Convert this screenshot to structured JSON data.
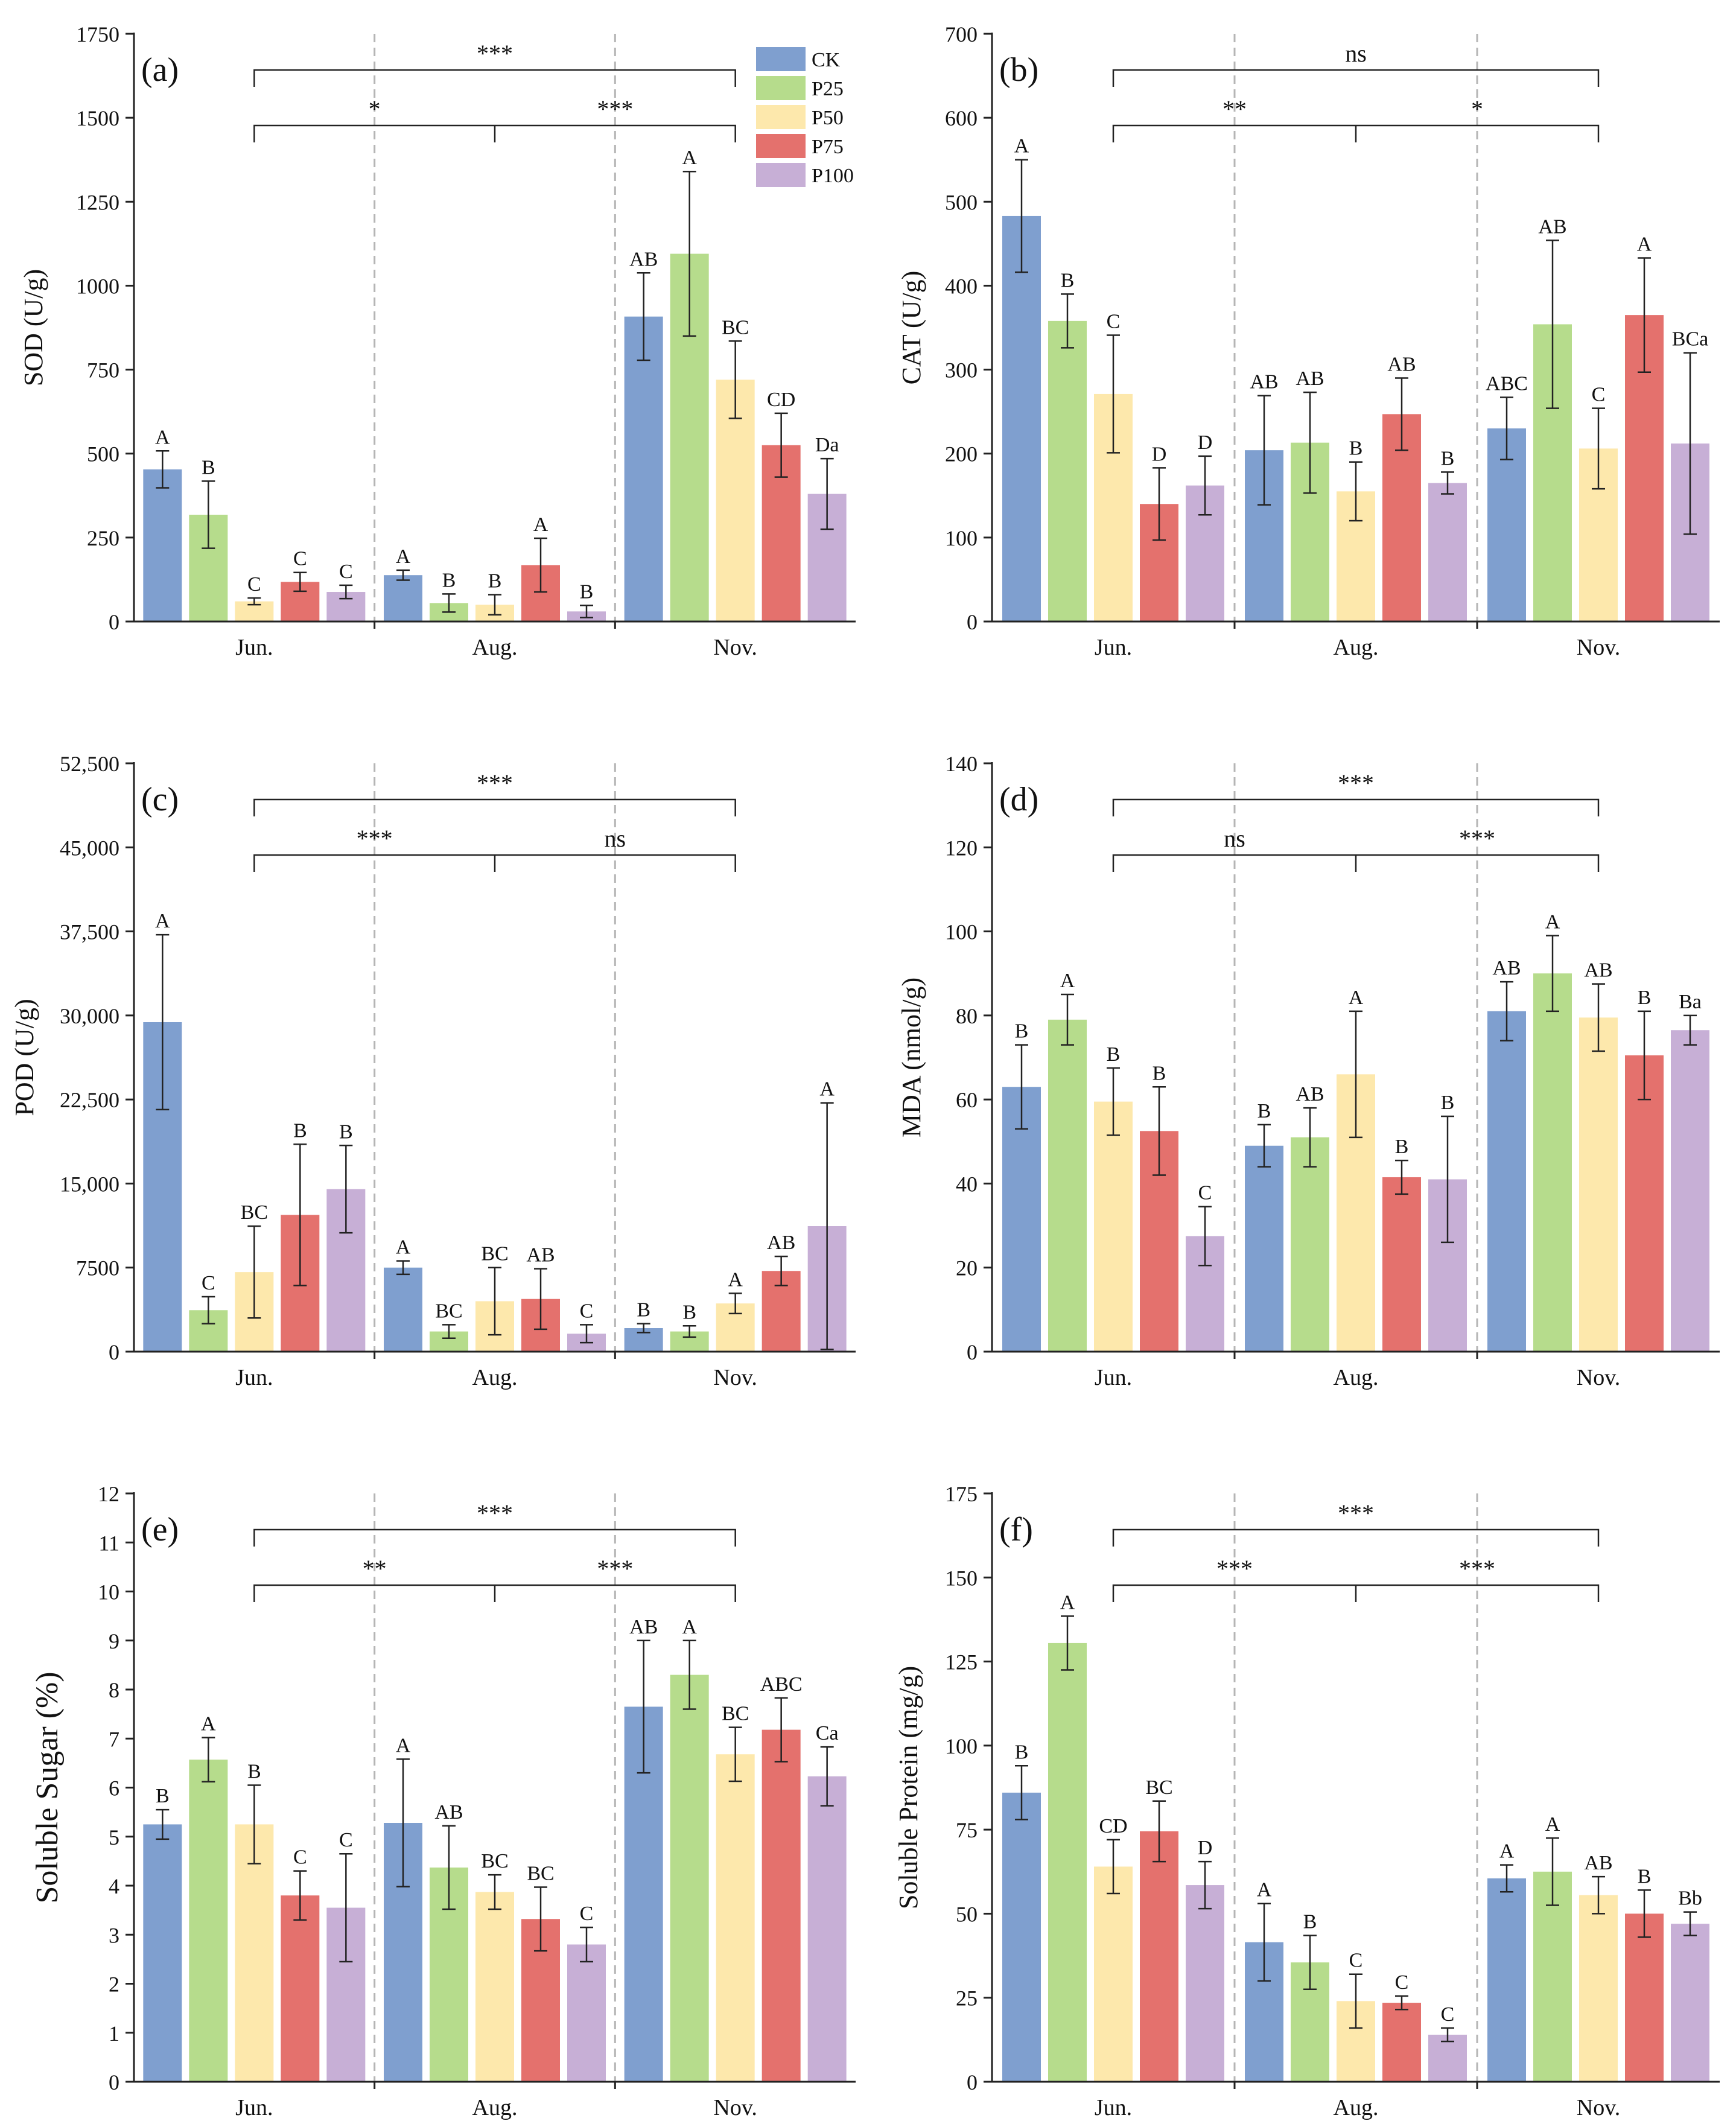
{
  "colors": {
    "CK": "#7f9fcf",
    "P25": "#b6dc8c",
    "P50": "#fde8ac",
    "P75": "#e4716d",
    "P100": "#c7afd6"
  },
  "legend": [
    "CK",
    "P25",
    "P50",
    "P75",
    "P100"
  ],
  "chart_data": [
    {
      "type": "bar",
      "panel": "(a)",
      "ylabel": "SOD (U/g)",
      "ylim": [
        0,
        1750
      ],
      "yticks": [
        0,
        250,
        500,
        750,
        1000,
        1250,
        1500,
        1750
      ],
      "ytick_labels": [
        "0",
        "250",
        "500",
        "750",
        "1000",
        "1250",
        "1500",
        "1750"
      ],
      "categories": [
        "Jun.",
        "Aug.",
        "Nov."
      ],
      "series": [
        {
          "name": "CK",
          "values": [
            453,
            138,
            908
          ],
          "err": [
            55,
            15,
            130
          ],
          "labels": [
            "A",
            "A",
            "AB"
          ]
        },
        {
          "name": "P25",
          "values": [
            318,
            55,
            1095
          ],
          "err": [
            100,
            27,
            245
          ],
          "labels": [
            "B",
            "B",
            "A"
          ]
        },
        {
          "name": "P50",
          "values": [
            60,
            50,
            720
          ],
          "err": [
            10,
            30,
            115
          ],
          "labels": [
            "C",
            "B",
            "BC"
          ]
        },
        {
          "name": "P75",
          "values": [
            118,
            168,
            525
          ],
          "err": [
            28,
            80,
            95
          ],
          "labels": [
            "C",
            "A",
            "CD"
          ]
        },
        {
          "name": "P100",
          "values": [
            88,
            30,
            380
          ],
          "err": [
            20,
            18,
            105
          ],
          "labels": [
            "C",
            "B",
            "Da"
          ]
        }
      ],
      "brackets": {
        "outer": "***",
        "left": "*",
        "right": "***"
      }
    },
    {
      "type": "bar",
      "panel": "(b)",
      "ylabel": "CAT (U/g)",
      "ylim": [
        0,
        700
      ],
      "yticks": [
        0,
        100,
        200,
        300,
        400,
        500,
        600,
        700
      ],
      "ytick_labels": [
        "0",
        "100",
        "200",
        "300",
        "400",
        "500",
        "600",
        "700"
      ],
      "categories": [
        "Jun.",
        "Aug.",
        "Nov."
      ],
      "series": [
        {
          "name": "CK",
          "values": [
            483,
            204,
            230
          ],
          "err": [
            67,
            65,
            37
          ],
          "labels": [
            "A",
            "AB",
            "ABC"
          ]
        },
        {
          "name": "P25",
          "values": [
            358,
            213,
            354
          ],
          "err": [
            32,
            60,
            100
          ],
          "labels": [
            "B",
            "AB",
            "AB"
          ]
        },
        {
          "name": "P50",
          "values": [
            271,
            155,
            206
          ],
          "err": [
            70,
            35,
            48
          ],
          "labels": [
            "C",
            "B",
            "C"
          ]
        },
        {
          "name": "P75",
          "values": [
            140,
            247,
            365
          ],
          "err": [
            43,
            43,
            68
          ],
          "labels": [
            "D",
            "AB",
            "A"
          ]
        },
        {
          "name": "P100",
          "values": [
            162,
            165,
            212
          ],
          "err": [
            35,
            13,
            108
          ],
          "labels": [
            "D",
            "B",
            "BCa"
          ]
        }
      ],
      "brackets": {
        "outer": "ns",
        "left": "**",
        "right": "*"
      }
    },
    {
      "type": "bar",
      "panel": "(c)",
      "ylabel": "POD (U/g)",
      "ylim": [
        0,
        52500
      ],
      "yticks": [
        0,
        7500,
        15000,
        22500,
        30000,
        37500,
        45000,
        52500
      ],
      "ytick_labels": [
        "0",
        "7500",
        "15,000",
        "22,500",
        "30,000",
        "37,500",
        "45,000",
        "52,500"
      ],
      "categories": [
        "Jun.",
        "Aug.",
        "Nov."
      ],
      "series": [
        {
          "name": "CK",
          "values": [
            29400,
            7500,
            2100
          ],
          "err": [
            7800,
            600,
            400
          ],
          "labels": [
            "A",
            "A",
            "B"
          ]
        },
        {
          "name": "P25",
          "values": [
            3700,
            1800,
            1800
          ],
          "err": [
            1200,
            600,
            500
          ],
          "labels": [
            "C",
            "BC",
            "B"
          ]
        },
        {
          "name": "P50",
          "values": [
            7100,
            4500,
            4300
          ],
          "err": [
            4100,
            3000,
            900
          ],
          "labels": [
            "BC",
            "BC",
            "A"
          ]
        },
        {
          "name": "P75",
          "values": [
            12200,
            4700,
            7200
          ],
          "err": [
            6300,
            2700,
            1300
          ],
          "labels": [
            "B",
            "AB",
            "AB"
          ]
        },
        {
          "name": "P100",
          "values": [
            14500,
            1600,
            11200
          ],
          "err": [
            3900,
            800,
            11000
          ],
          "labels": [
            "B",
            "C",
            "A"
          ]
        }
      ],
      "brackets": {
        "outer": "***",
        "left": "***",
        "right": "ns"
      }
    },
    {
      "type": "bar",
      "panel": "(d)",
      "ylabel": "MDA (nmol/g)",
      "ylim": [
        0,
        140
      ],
      "yticks": [
        0,
        20,
        40,
        60,
        80,
        100,
        120,
        140
      ],
      "ytick_labels": [
        "0",
        "20",
        "40",
        "60",
        "80",
        "100",
        "120",
        "140"
      ],
      "categories": [
        "Jun.",
        "Aug.",
        "Nov."
      ],
      "series": [
        {
          "name": "CK",
          "values": [
            63,
            49,
            81
          ],
          "err": [
            10,
            5,
            7
          ],
          "labels": [
            "B",
            "B",
            "AB"
          ]
        },
        {
          "name": "P25",
          "values": [
            79,
            51,
            90
          ],
          "err": [
            6,
            7,
            9
          ],
          "labels": [
            "A",
            "AB",
            "A"
          ]
        },
        {
          "name": "P50",
          "values": [
            59.5,
            66,
            79.5
          ],
          "err": [
            8,
            15,
            8
          ],
          "labels": [
            "B",
            "A",
            "AB"
          ]
        },
        {
          "name": "P75",
          "values": [
            52.5,
            41.5,
            70.5
          ],
          "err": [
            10.5,
            4,
            10.5
          ],
          "labels": [
            "B",
            "B",
            "B"
          ]
        },
        {
          "name": "P100",
          "values": [
            27.5,
            41,
            76.5
          ],
          "err": [
            7,
            15,
            3.5
          ],
          "labels": [
            "C",
            "B",
            "Ba"
          ]
        }
      ],
      "brackets": {
        "outer": "***",
        "left": "ns",
        "right": "***"
      }
    },
    {
      "type": "bar",
      "panel": "(e)",
      "ylabel": "Soluble Sugar (%)",
      "ylim": [
        0,
        12
      ],
      "yticks": [
        0,
        1,
        2,
        3,
        4,
        5,
        6,
        7,
        8,
        9,
        10,
        11,
        12
      ],
      "ytick_labels": [
        "0",
        "1",
        "2",
        "3",
        "4",
        "5",
        "6",
        "7",
        "8",
        "9",
        "10",
        "11",
        "12"
      ],
      "categories": [
        "Jun.",
        "Aug.",
        "Nov."
      ],
      "series": [
        {
          "name": "CK",
          "values": [
            5.25,
            5.28,
            7.65
          ],
          "err": [
            0.3,
            1.3,
            1.35
          ],
          "labels": [
            "B",
            "A",
            "AB"
          ]
        },
        {
          "name": "P25",
          "values": [
            6.57,
            4.37,
            8.3
          ],
          "err": [
            0.45,
            0.85,
            0.7
          ],
          "labels": [
            "A",
            "AB",
            "A"
          ]
        },
        {
          "name": "P50",
          "values": [
            5.25,
            3.87,
            6.68
          ],
          "err": [
            0.8,
            0.35,
            0.55
          ],
          "labels": [
            "B",
            "BC",
            "BC"
          ]
        },
        {
          "name": "P75",
          "values": [
            3.8,
            3.32,
            7.18
          ],
          "err": [
            0.5,
            0.65,
            0.65
          ],
          "labels": [
            "C",
            "BC",
            "ABC"
          ]
        },
        {
          "name": "P100",
          "values": [
            3.55,
            2.8,
            6.23
          ],
          "err": [
            1.1,
            0.35,
            0.6
          ],
          "labels": [
            "C",
            "C",
            "Ca"
          ]
        }
      ],
      "brackets": {
        "outer": "***",
        "left": "**",
        "right": "***"
      }
    },
    {
      "type": "bar",
      "panel": "(f)",
      "ylabel": "Soluble Protein (mg/g)",
      "ylim": [
        0,
        175
      ],
      "yticks": [
        0,
        25,
        50,
        75,
        100,
        125,
        150,
        175
      ],
      "ytick_labels": [
        "0",
        "25",
        "50",
        "75",
        "100",
        "125",
        "150",
        "175"
      ],
      "categories": [
        "Jun.",
        "Aug.",
        "Nov."
      ],
      "series": [
        {
          "name": "CK",
          "values": [
            86,
            41.5,
            60.5
          ],
          "err": [
            8,
            11.5,
            4
          ],
          "labels": [
            "B",
            "A",
            "A"
          ]
        },
        {
          "name": "P25",
          "values": [
            130.5,
            35.5,
            62.5
          ],
          "err": [
            8,
            8,
            10
          ],
          "labels": [
            "A",
            "B",
            "A"
          ]
        },
        {
          "name": "P50",
          "values": [
            64,
            24,
            55.5
          ],
          "err": [
            8,
            8,
            5.5
          ],
          "labels": [
            "CD",
            "C",
            "AB"
          ]
        },
        {
          "name": "P75",
          "values": [
            74.5,
            23.5,
            50
          ],
          "err": [
            9,
            2,
            7
          ],
          "labels": [
            "BC",
            "C",
            "B"
          ]
        },
        {
          "name": "P100",
          "values": [
            58.5,
            14,
            47
          ],
          "err": [
            7,
            2,
            3.5
          ],
          "labels": [
            "D",
            "C",
            "Bb"
          ]
        }
      ],
      "brackets": {
        "outer": "***",
        "left": "***",
        "right": "***"
      }
    }
  ]
}
